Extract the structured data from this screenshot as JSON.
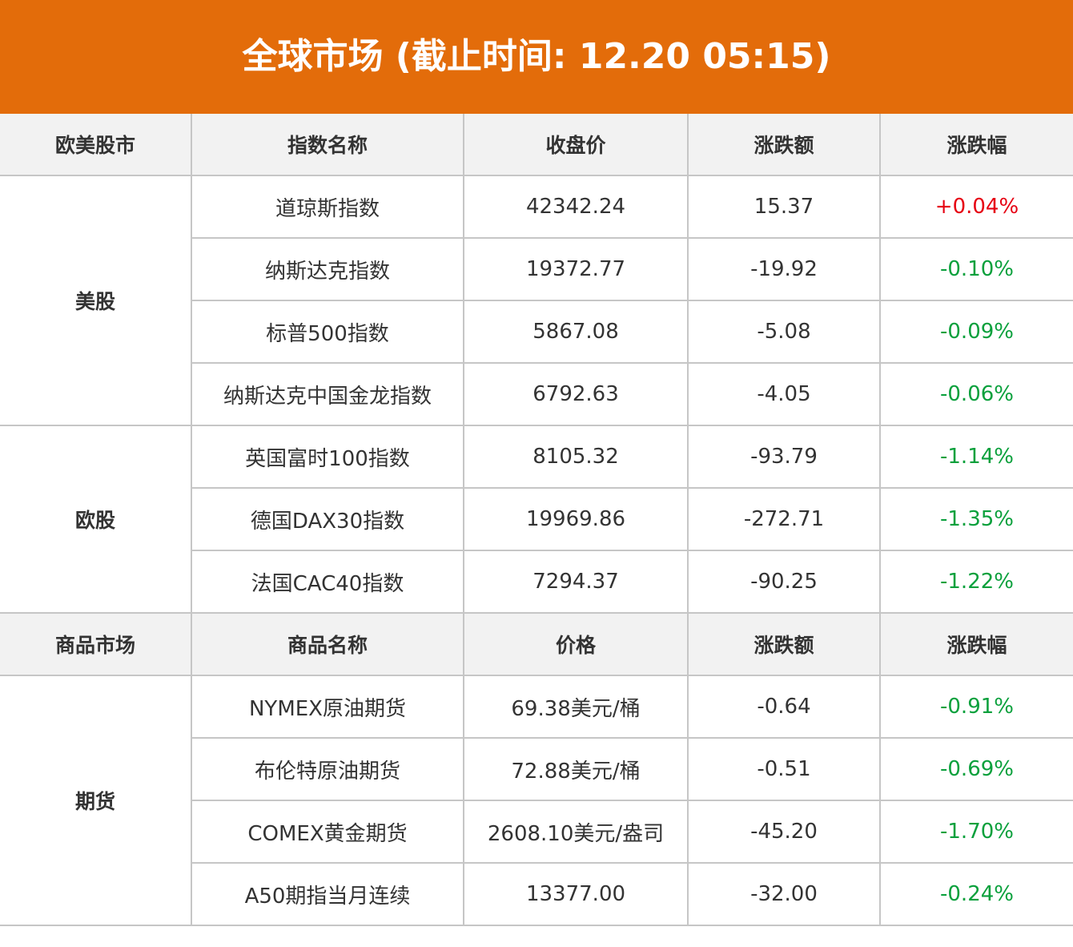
{
  "title": "全球市场 (截止时间: 12.20 05:15)",
  "colors": {
    "header_bg": "#e36c0a",
    "up": "#e60012",
    "down": "#0aa03c"
  },
  "sections": [
    {
      "headers": [
        "欧美股市",
        "指数名称",
        "收盘价",
        "涨跌额",
        "涨跌幅"
      ],
      "groups": [
        {
          "label": "美股",
          "rows": [
            {
              "name": "道琼斯指数",
              "price": "42342.24",
              "change": "15.37",
              "pct": "+0.04%",
              "dir": "up"
            },
            {
              "name": "纳斯达克指数",
              "price": "19372.77",
              "change": "-19.92",
              "pct": "-0.10%",
              "dir": "down"
            },
            {
              "name": "标普500指数",
              "price": "5867.08",
              "change": "-5.08",
              "pct": "-0.09%",
              "dir": "down"
            },
            {
              "name": "纳斯达克中国金龙指数",
              "price": "6792.63",
              "change": "-4.05",
              "pct": "-0.06%",
              "dir": "down"
            }
          ]
        },
        {
          "label": "欧股",
          "rows": [
            {
              "name": "英国富时100指数",
              "price": "8105.32",
              "change": "-93.79",
              "pct": "-1.14%",
              "dir": "down"
            },
            {
              "name": "德国DAX30指数",
              "price": "19969.86",
              "change": "-272.71",
              "pct": "-1.35%",
              "dir": "down"
            },
            {
              "name": "法国CAC40指数",
              "price": "7294.37",
              "change": "-90.25",
              "pct": "-1.22%",
              "dir": "down"
            }
          ]
        }
      ]
    },
    {
      "headers": [
        "商品市场",
        "商品名称",
        "价格",
        "涨跌额",
        "涨跌幅"
      ],
      "groups": [
        {
          "label": "期货",
          "rows": [
            {
              "name": "NYMEX原油期货",
              "price": "69.38美元/桶",
              "change": "-0.64",
              "pct": "-0.91%",
              "dir": "down"
            },
            {
              "name": "布伦特原油期货",
              "price": "72.88美元/桶",
              "change": "-0.51",
              "pct": "-0.69%",
              "dir": "down"
            },
            {
              "name": "COMEX黄金期货",
              "price": "2608.10美元/盎司",
              "change": "-45.20",
              "pct": "-1.70%",
              "dir": "down"
            },
            {
              "name": "A50期指当月连续",
              "price": "13377.00",
              "change": "-32.00",
              "pct": "-0.24%",
              "dir": "down"
            }
          ]
        }
      ]
    }
  ]
}
